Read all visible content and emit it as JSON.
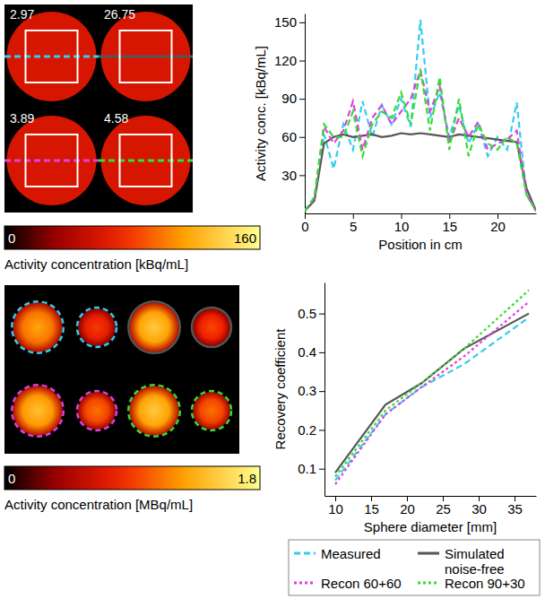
{
  "chart_data": [
    {
      "type": "image",
      "phantoms": [
        {
          "note": 2.97,
          "mean": 60,
          "series": 0
        },
        {
          "note": 26.75,
          "mean": 60,
          "series": 1
        },
        {
          "note": 3.89,
          "mean": 60,
          "series": 2
        },
        {
          "note": 4.58,
          "mean": 60,
          "series": 3
        }
      ],
      "colorbar": {
        "range": [
          0,
          160
        ],
        "ticks": [
          0,
          160
        ],
        "title": "Activity concentration [kBq/mL]"
      }
    },
    {
      "type": "line",
      "x": [
        0,
        1,
        2,
        3,
        4,
        5,
        6,
        7,
        8,
        9,
        10,
        11,
        12,
        13,
        14,
        15,
        16,
        17,
        18,
        19,
        20,
        21,
        22,
        23,
        24
      ],
      "series": [
        {
          "color": "#33ccee",
          "line_style": "dashed",
          "values": [
            2,
            12,
            62,
            35,
            70,
            50,
            88,
            60,
            85,
            70,
            90,
            68,
            152,
            75,
            95,
            60,
            85,
            55,
            70,
            45,
            60,
            50,
            87,
            15,
            2
          ]
        },
        {
          "color": "#555555",
          "line_style": "solid",
          "values": [
            2,
            10,
            55,
            60,
            62,
            60,
            61,
            62,
            60,
            61,
            63,
            62,
            63,
            62,
            61,
            60,
            62,
            61,
            60,
            59,
            58,
            57,
            56,
            20,
            2
          ]
        },
        {
          "color": "#e040e0",
          "line_style": "dashed",
          "values": [
            2,
            12,
            68,
            55,
            65,
            88,
            50,
            75,
            85,
            70,
            80,
            90,
            112,
            80,
            100,
            55,
            75,
            60,
            72,
            50,
            55,
            58,
            65,
            15,
            2
          ]
        },
        {
          "color": "#33dd33",
          "line_style": "dashed",
          "values": [
            2,
            13,
            70,
            60,
            60,
            80,
            45,
            70,
            80,
            75,
            95,
            70,
            113,
            65,
            107,
            50,
            90,
            45,
            70,
            55,
            50,
            60,
            55,
            15,
            2
          ]
        }
      ],
      "xlim": [
        0,
        24
      ],
      "xticks": [
        0,
        5,
        10,
        15,
        20
      ],
      "ylim": [
        0,
        157
      ],
      "yticks": [
        30,
        60,
        90,
        120,
        150
      ],
      "x_label": "Position in cm",
      "y_label": "Activity conc. [kBq/mL]"
    },
    {
      "type": "image",
      "spheres": [
        {
          "series": 0,
          "diameter": 37,
          "value": 1.3
        },
        {
          "series": 0,
          "diameter": 28,
          "value": 0.9
        },
        {
          "series": 1,
          "diameter": 37,
          "value": 1.5
        },
        {
          "series": 1,
          "diameter": 28,
          "value": 0.95
        },
        {
          "series": 2,
          "diameter": 37,
          "value": 1.45
        },
        {
          "series": 2,
          "diameter": 28,
          "value": 1.1
        },
        {
          "series": 3,
          "diameter": 37,
          "value": 1.5
        },
        {
          "series": 3,
          "diameter": 28,
          "value": 1.1
        }
      ],
      "colorbar": {
        "range": [
          0,
          1.8
        ],
        "ticks": [
          0,
          1.8
        ],
        "title": "Activity concentration [MBq/mL]"
      }
    },
    {
      "type": "line",
      "x": [
        10,
        17,
        22,
        28,
        37
      ],
      "series": [
        {
          "name": "Measured",
          "color": "#33ccee",
          "line_style": "dashed",
          "values": [
            0.07,
            0.24,
            0.31,
            0.37,
            0.49
          ]
        },
        {
          "name": "Simulated noise-free",
          "color": "#555555",
          "line_style": "solid",
          "values": [
            0.09,
            0.265,
            0.32,
            0.41,
            0.5
          ]
        },
        {
          "name": "Recon 60+60",
          "color": "#e040e0",
          "line_style": "dotted",
          "values": [
            0.06,
            0.24,
            0.31,
            0.39,
            0.53
          ]
        },
        {
          "name": "Recon 90+30",
          "color": "#33dd33",
          "line_style": "dotted",
          "values": [
            0.08,
            0.25,
            0.32,
            0.41,
            0.56
          ]
        }
      ],
      "xlim": [
        8.5,
        38
      ],
      "xticks": [
        10,
        15,
        20,
        25,
        30,
        35
      ],
      "ylim": [
        0.03,
        0.58
      ],
      "yticks": [
        0.1,
        0.2,
        0.3,
        0.4,
        0.5
      ],
      "x_label": "Sphere diameter [mm]",
      "y_label": "Recovery coefficient",
      "legend": "bottom"
    }
  ]
}
